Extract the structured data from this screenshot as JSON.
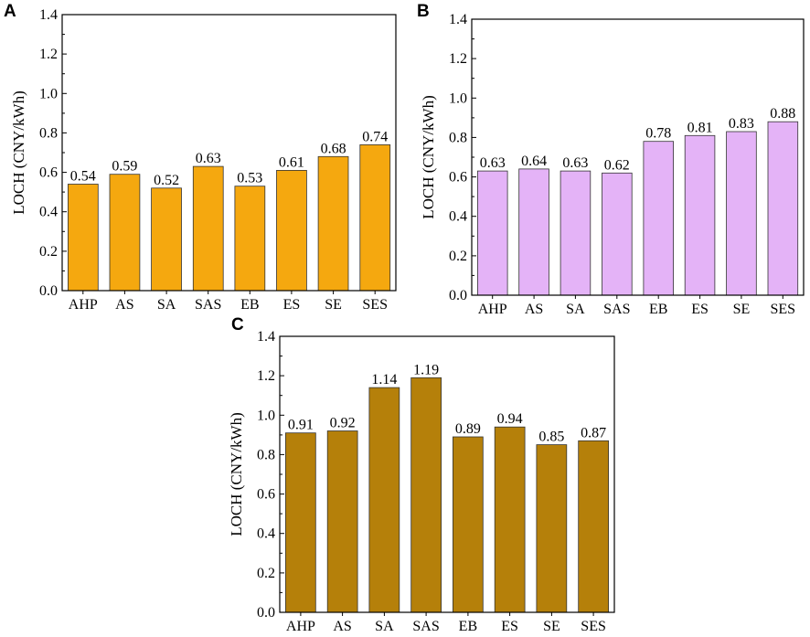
{
  "chart_data": [
    {
      "panel": "A",
      "type": "bar",
      "title": "",
      "xlabel": "",
      "ylabel": "LOCH (CNY/kWh)",
      "categories": [
        "AHP",
        "AS",
        "SA",
        "SAS",
        "EB",
        "ES",
        "SE",
        "SES"
      ],
      "values": [
        0.54,
        0.59,
        0.52,
        0.63,
        0.53,
        0.61,
        0.68,
        0.74
      ],
      "value_labels": [
        "0.54",
        "0.59",
        "0.52",
        "0.63",
        "0.53",
        "0.61",
        "0.68",
        "0.74"
      ],
      "ylim": [
        0,
        1.4
      ],
      "yticks": [
        0,
        0.2,
        0.4,
        0.6,
        0.8,
        1.0,
        1.2,
        1.4
      ],
      "ytick_labels": [
        "0.0",
        "0.2",
        "0.4",
        "0.6",
        "0.8",
        "1.0",
        "1.2",
        "1.4"
      ],
      "bar_color": "#F5A80F",
      "grid": false
    },
    {
      "panel": "B",
      "type": "bar",
      "title": "",
      "xlabel": "",
      "ylabel": "LOCH (CNY/kWh)",
      "categories": [
        "AHP",
        "AS",
        "SA",
        "SAS",
        "EB",
        "ES",
        "SE",
        "SES"
      ],
      "values": [
        0.63,
        0.64,
        0.63,
        0.62,
        0.78,
        0.81,
        0.83,
        0.88
      ],
      "value_labels": [
        "0.63",
        "0.64",
        "0.63",
        "0.62",
        "0.78",
        "0.81",
        "0.83",
        "0.88"
      ],
      "ylim": [
        0,
        1.4
      ],
      "yticks": [
        0,
        0.2,
        0.4,
        0.6,
        0.8,
        1.0,
        1.2,
        1.4
      ],
      "ytick_labels": [
        "0.0",
        "0.2",
        "0.4",
        "0.6",
        "0.8",
        "1.0",
        "1.2",
        "1.4"
      ],
      "bar_color": "#E4B3F7",
      "grid": false
    },
    {
      "panel": "C",
      "type": "bar",
      "title": "",
      "xlabel": "",
      "ylabel": "LOCH (CNY/kWh)",
      "categories": [
        "AHP",
        "AS",
        "SA",
        "SAS",
        "EB",
        "ES",
        "SE",
        "SES"
      ],
      "values": [
        0.91,
        0.92,
        1.14,
        1.19,
        0.89,
        0.94,
        0.85,
        0.87
      ],
      "value_labels": [
        "0.91",
        "0.92",
        "1.14",
        "1.19",
        "0.89",
        "0.94",
        "0.85",
        "0.87"
      ],
      "ylim": [
        0,
        1.4
      ],
      "yticks": [
        0,
        0.2,
        0.4,
        0.6,
        0.8,
        1.0,
        1.2,
        1.4
      ],
      "ytick_labels": [
        "0.0",
        "0.2",
        "0.4",
        "0.6",
        "0.8",
        "1.0",
        "1.2",
        "1.4"
      ],
      "bar_color": "#B5800A",
      "grid": false
    }
  ]
}
